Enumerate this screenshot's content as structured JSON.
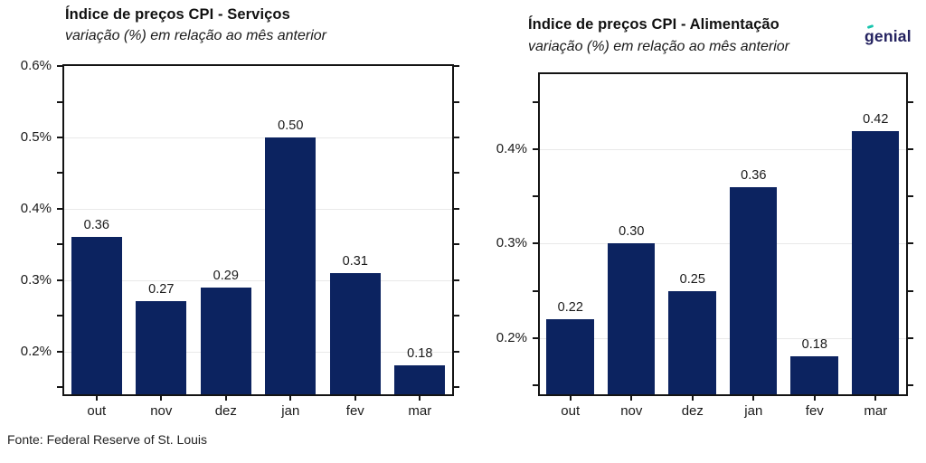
{
  "source_note": "Fonte: Federal Reserve of St. Louis",
  "logo": {
    "text": "genial",
    "color": "#23215f",
    "accent_color": "#18c5ad"
  },
  "colors": {
    "bar": "#0c2360",
    "grid": "#e9e9e9",
    "frame": "#141414",
    "text": "#1a1a1a"
  },
  "chart_data": [
    {
      "type": "bar",
      "title": "Índice de preços CPI - Serviços",
      "subtitle": "variação (%) em relação ao mês anterior",
      "categories": [
        "out",
        "nov",
        "dez",
        "jan",
        "fev",
        "mar"
      ],
      "values": [
        0.36,
        0.27,
        0.29,
        0.5,
        0.31,
        0.18
      ],
      "value_labels": [
        "0.36",
        "0.27",
        "0.29",
        "0.50",
        "0.31",
        "0.18"
      ],
      "ylim": [
        0.14,
        0.6
      ],
      "ytick_values": [
        0.2,
        0.3,
        0.4,
        0.5,
        0.6
      ],
      "ytick_labels": [
        "0.2%",
        "0.3%",
        "0.4%",
        "0.5%",
        "0.6%"
      ],
      "minor_tick_step": 0.05,
      "grid": true,
      "legend": "none",
      "bar_color": "#0c2360"
    },
    {
      "type": "bar",
      "title": "Índice de preços CPI - Alimentação",
      "subtitle": "variação (%) em relação ao mês anterior",
      "categories": [
        "out",
        "nov",
        "dez",
        "jan",
        "fev",
        "mar"
      ],
      "values": [
        0.22,
        0.3,
        0.25,
        0.36,
        0.18,
        0.42
      ],
      "value_labels": [
        "0.22",
        "0.30",
        "0.25",
        "0.36",
        "0.18",
        "0.42"
      ],
      "ylim": [
        0.14,
        0.48
      ],
      "ytick_values": [
        0.2,
        0.3,
        0.4
      ],
      "ytick_labels": [
        "0.2%",
        "0.3%",
        "0.4%"
      ],
      "minor_tick_step": 0.05,
      "grid": true,
      "legend": "none",
      "bar_color": "#0c2360"
    }
  ]
}
